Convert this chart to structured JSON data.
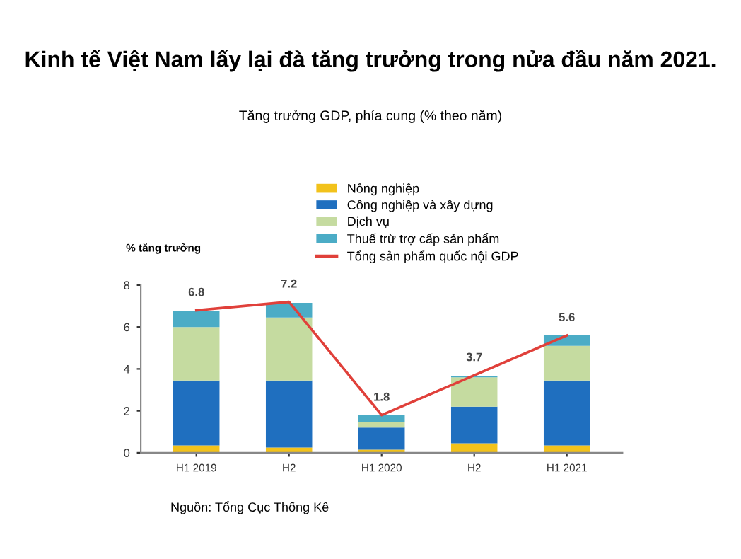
{
  "chart_data": {
    "type": "bar",
    "title": "Kinh tế Việt Nam lấy lại đà tăng trưởng trong nửa đầu năm 2021.",
    "subtitle": "Tăng trưởng GDP, phía cung (% theo năm)",
    "ylabel": "% tăng trưởng",
    "annotations": [
      "Nguồn: Tổng Cục Thống Kê"
    ],
    "categories": [
      "H1 2019",
      "H2",
      "H1 2020",
      "H2",
      "H1 2021"
    ],
    "stacked": true,
    "series": [
      {
        "name": "Nông nghiệp",
        "color": "#f2c21b",
        "values": [
          0.35,
          0.25,
          0.15,
          0.45,
          0.35
        ]
      },
      {
        "name": "Công nghiệp và xây dựng",
        "color": "#1f6fbf",
        "values": [
          3.1,
          3.2,
          1.05,
          1.75,
          3.1
        ]
      },
      {
        "name": "Dịch vụ",
        "color": "#c5dba0",
        "values": [
          2.55,
          3.0,
          0.25,
          1.4,
          1.65
        ]
      },
      {
        "name": "Thuế trừ trợ cấp sản phẩm",
        "color": "#4bacc6",
        "values": [
          0.75,
          0.7,
          0.35,
          0.05,
          0.5
        ]
      },
      {
        "name": "Tổng sản phẩm quốc nội GDP",
        "type": "line",
        "color": "#e0403a",
        "values": [
          6.8,
          7.2,
          1.8,
          3.7,
          5.6
        ],
        "value_labels": [
          "6.8",
          "7.2",
          "1.8",
          "3.7",
          "5.6"
        ]
      }
    ],
    "ylim": [
      0,
      8
    ],
    "yticks": [
      0,
      2,
      4,
      6,
      8
    ],
    "grid": false,
    "legend": "top",
    "marker": "none",
    "line_style": "solid"
  }
}
